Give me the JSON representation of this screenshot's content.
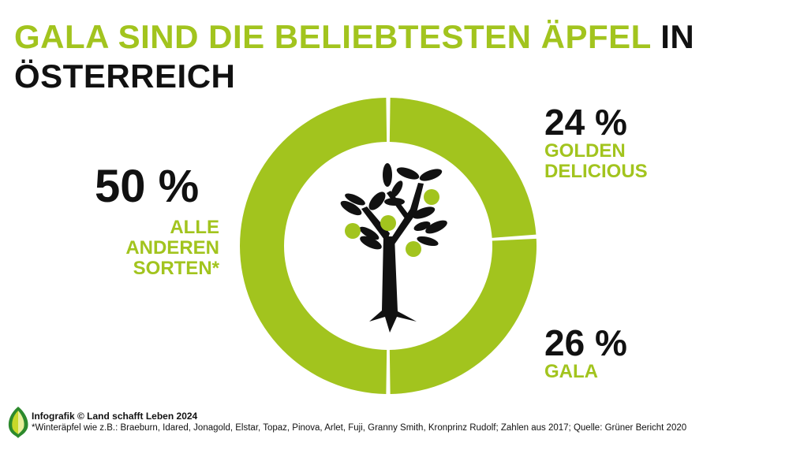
{
  "title": {
    "green": "GALA SIND DIE BELIEBTESTEN ÄPFEL",
    "black1": "IN",
    "black2": "ÖSTERREICH"
  },
  "colors": {
    "accent": "#a2c41e",
    "text": "#111111"
  },
  "chart_data": {
    "type": "pie",
    "variant": "donut",
    "start": "top",
    "direction": "clockwise",
    "slices": [
      {
        "label": "GOLDEN DELICIOUS",
        "label_lines": [
          "GOLDEN",
          "DELICIOUS"
        ],
        "value": 24,
        "value_label": "24 %"
      },
      {
        "label": "GALA",
        "label_lines": [
          "GALA"
        ],
        "value": 26,
        "value_label": "26 %"
      },
      {
        "label": "ALLE ANDEREN SORTEN*",
        "label_lines": [
          "ALLE",
          "ANDEREN",
          "SORTEN*"
        ],
        "value": 50,
        "value_label": "50 %"
      }
    ],
    "center_icon": "apple-tree-icon"
  },
  "footer": {
    "credit": "Infografik © Land schafft Leben 2024",
    "note": "*Winteräpfel wie z.B.: Braeburn, Idared, Jonagold, Elstar, Topaz, Pinova, Arlet, Fuji, Granny Smith, Kronprinz Rudolf; Zahlen aus 2017; Quelle: Grüner Bericht 2020",
    "logo_icon": "leaf-logo-icon"
  }
}
